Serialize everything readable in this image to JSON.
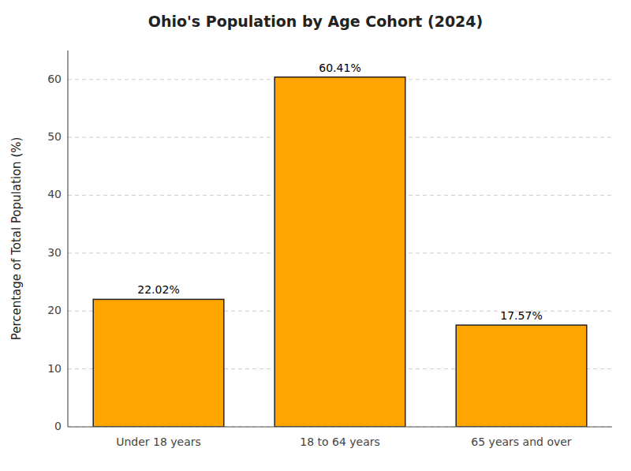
{
  "chart_data": {
    "type": "bar",
    "title": "Ohio's Population by Age Cohort (2024)",
    "categories": [
      "Under 18 years",
      "18 to 64 years",
      "65 years and over"
    ],
    "values": [
      22.02,
      60.41,
      17.57
    ],
    "value_labels": [
      "22.02%",
      "60.41%",
      "17.57%"
    ],
    "data_labels": true,
    "color": "#FFA500",
    "ylabel": "Percentage of Total Population (%)",
    "ylim": [
      0,
      65
    ],
    "yticks": [
      0,
      10,
      20,
      30,
      40,
      50,
      60
    ],
    "grid": true
  }
}
